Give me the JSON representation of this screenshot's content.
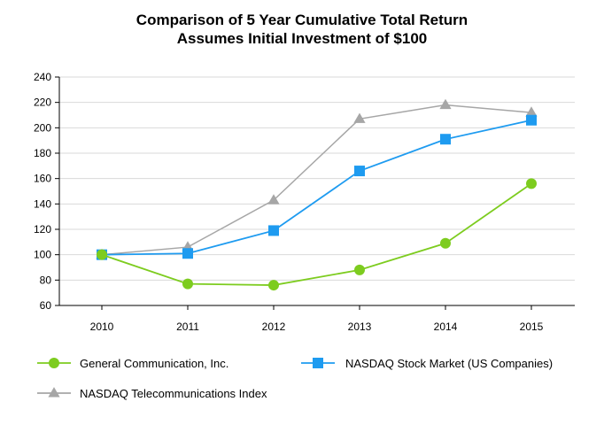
{
  "title_line1": "Comparison of 5 Year Cumulative Total Return",
  "title_line2": "Assumes Initial Investment of $100",
  "chart_data": {
    "type": "line",
    "title": "Comparison of 5 Year Cumulative Total Return",
    "subtitle": "Assumes Initial Investment of $100",
    "xlabel": "",
    "ylabel": "",
    "categories": [
      "2010",
      "2011",
      "2012",
      "2013",
      "2014",
      "2015"
    ],
    "ylim": [
      60,
      240
    ],
    "yticks": [
      60,
      80,
      100,
      120,
      140,
      160,
      180,
      200,
      220,
      240
    ],
    "grid": true,
    "legend_position": "bottom",
    "series": [
      {
        "name": "General Communication, Inc.",
        "values": [
          100,
          77,
          76,
          88,
          109,
          156
        ],
        "color": "#7dcc1f",
        "marker": "circle"
      },
      {
        "name": "NASDAQ Stock Market (US Companies)",
        "values": [
          100,
          101,
          119,
          166,
          191,
          206
        ],
        "color": "#1e9bf0",
        "marker": "square"
      },
      {
        "name": "NASDAQ Telecommunications Index",
        "values": [
          100,
          106,
          143,
          207,
          218,
          212
        ],
        "color": "#a6a6a6",
        "marker": "triangle"
      }
    ]
  }
}
